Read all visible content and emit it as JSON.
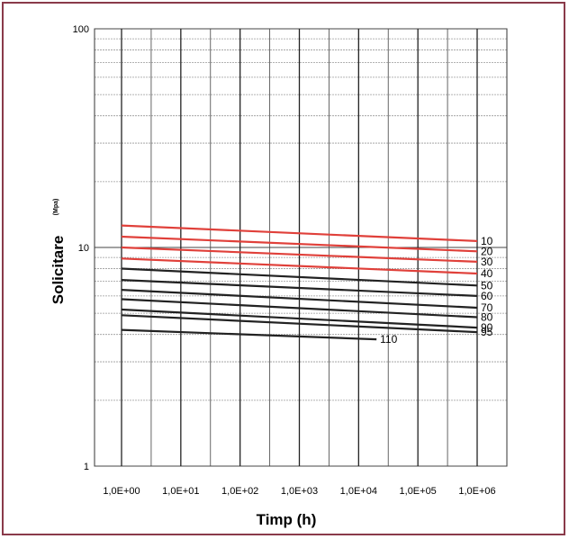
{
  "chart_data": {
    "type": "line",
    "title": "",
    "xlabel": "Timp (h)",
    "ylabel": "Solicitare",
    "ylabel_unit": "(Mpa)",
    "xscale": "log",
    "yscale": "log",
    "xlim": [
      1,
      1000000
    ],
    "ylim": [
      1,
      100
    ],
    "grid": true,
    "x_tick_labels": [
      "1,0E+00",
      "1,0E+01",
      "1,0E+02",
      "1,0E+03",
      "1,0E+04",
      "1,0E+05",
      "1,0E+06"
    ],
    "y_tick_labels": [
      "1",
      "10",
      "100"
    ],
    "series": [
      {
        "name": "10",
        "color": "#e0403a",
        "x": [
          1,
          1000000
        ],
        "y": [
          12.6,
          10.7
        ]
      },
      {
        "name": "20",
        "color": "#e0403a",
        "x": [
          1,
          1000000
        ],
        "y": [
          11.2,
          9.6
        ]
      },
      {
        "name": "30",
        "color": "#e0403a",
        "x": [
          1,
          1000000
        ],
        "y": [
          10.0,
          8.6
        ]
      },
      {
        "name": "40",
        "color": "#e0403a",
        "x": [
          1,
          1000000
        ],
        "y": [
          8.9,
          7.6
        ]
      },
      {
        "name": "50",
        "color": "#222222",
        "x": [
          1,
          1000000
        ],
        "y": [
          8.0,
          6.7
        ]
      },
      {
        "name": "60",
        "color": "#222222",
        "x": [
          1,
          1000000
        ],
        "y": [
          7.1,
          6.0
        ]
      },
      {
        "name": "70",
        "color": "#222222",
        "x": [
          1,
          1000000
        ],
        "y": [
          6.4,
          5.3
        ]
      },
      {
        "name": "80",
        "color": "#222222",
        "x": [
          1,
          1000000
        ],
        "y": [
          5.8,
          4.8
        ]
      },
      {
        "name": "90",
        "color": "#222222",
        "x": [
          1,
          1000000
        ],
        "y": [
          5.2,
          4.3
        ]
      },
      {
        "name": "95",
        "color": "#222222",
        "x": [
          1,
          1000000
        ],
        "y": [
          4.9,
          4.1
        ]
      },
      {
        "name": "110",
        "color": "#222222",
        "x": [
          1,
          20000
        ],
        "y": [
          4.2,
          3.8
        ]
      }
    ]
  }
}
